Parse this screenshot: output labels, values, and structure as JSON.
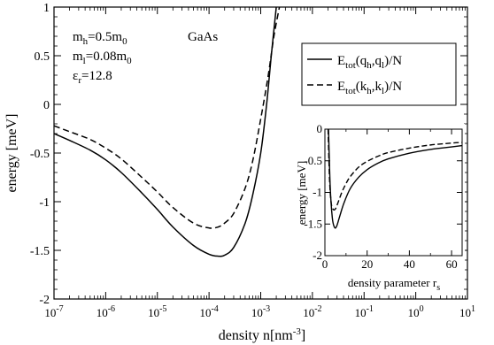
{
  "chart_data": [
    {
      "type": "line",
      "xlabel": "density n[nm",
      "xlabel_sup": "-3",
      "xlabel_end": "]",
      "ylabel": "energy [meV]",
      "x_scale": "log",
      "xlim": [
        1e-07,
        10
      ],
      "ylim": [
        -2,
        1
      ],
      "x_ticks": [
        {
          "base": "10",
          "exp": "-7"
        },
        {
          "base": "10",
          "exp": "-6"
        },
        {
          "base": "10",
          "exp": "-5"
        },
        {
          "base": "10",
          "exp": "-4"
        },
        {
          "base": "10",
          "exp": "-3"
        },
        {
          "base": "10",
          "exp": "-2"
        },
        {
          "base": "10",
          "exp": "-1"
        },
        {
          "base": "10",
          "exp": "0"
        },
        {
          "base": "10",
          "exp": "1"
        }
      ],
      "y_ticks": [
        "1",
        "0.5",
        "0",
        "-0.5",
        "-1",
        "-1.5",
        "-2"
      ],
      "parameters": {
        "mh": {
          "main": "m",
          "sub": "h",
          "rest": "=0.5m",
          "sub2": "0"
        },
        "ml": {
          "main": "m",
          "sub": "l",
          "rest": "=0.08m",
          "sub2": "0"
        },
        "er": {
          "main": "ε",
          "sub": "r",
          "rest": "=12.8"
        }
      },
      "material": "GaAs",
      "legend": {
        "placement": "top-right",
        "entries": [
          {
            "style": "solid",
            "prefix": "E",
            "sub": "tot",
            "args": "(q",
            "a1": "h",
            "mid": ",q",
            "a2": "l",
            "end": ")/N"
          },
          {
            "style": "dashed",
            "prefix": "E",
            "sub": "tot",
            "args": "(k",
            "a1": "h",
            "mid": ",k",
            "a2": "l",
            "end": ")/N"
          }
        ]
      },
      "series": [
        {
          "style": "solid",
          "x": [
            1e-07,
            2e-07,
            5e-07,
            1e-06,
            2e-06,
            5e-06,
            1e-05,
            2e-05,
            5e-05,
            0.0001,
            0.00015,
            0.0002,
            0.0003,
            0.0005,
            0.0007,
            0.001,
            0.0013,
            0.0016,
            0.002
          ],
          "y": [
            -0.3,
            -0.37,
            -0.47,
            -0.57,
            -0.7,
            -0.91,
            -1.08,
            -1.26,
            -1.45,
            -1.54,
            -1.56,
            -1.55,
            -1.47,
            -1.22,
            -0.93,
            -0.5,
            0.0,
            0.5,
            1.0
          ]
        },
        {
          "style": "dashed",
          "x": [
            1e-07,
            2e-07,
            5e-07,
            1e-06,
            2e-06,
            5e-06,
            1e-05,
            2e-05,
            5e-05,
            0.0001,
            0.00015,
            0.0002,
            0.0003,
            0.0005,
            0.0007,
            0.001,
            0.0014,
            0.0018,
            0.0023
          ],
          "y": [
            -0.22,
            -0.28,
            -0.36,
            -0.45,
            -0.56,
            -0.75,
            -0.9,
            -1.06,
            -1.22,
            -1.27,
            -1.26,
            -1.22,
            -1.12,
            -0.86,
            -0.58,
            -0.15,
            0.3,
            0.7,
            1.0
          ]
        }
      ]
    },
    {
      "type": "line",
      "inset": true,
      "xlabel": "density parameter r",
      "xlabel_sub": "s",
      "ylabel": "energy [meV]",
      "xlim": [
        0,
        65
      ],
      "ylim": [
        -2,
        0
      ],
      "x_ticks": [
        "0",
        "20",
        "40",
        "60"
      ],
      "y_ticks": [
        "0",
        "-0.5",
        "-1",
        "-1.5",
        "-2"
      ],
      "series": [
        {
          "style": "solid",
          "x": [
            1.7,
            2.5,
            3.5,
            4.5,
            5.5,
            7,
            9,
            12,
            16,
            20,
            25,
            30,
            40,
            50,
            60,
            65
          ],
          "y": [
            0,
            -0.9,
            -1.4,
            -1.55,
            -1.54,
            -1.38,
            -1.17,
            -0.94,
            -0.76,
            -0.64,
            -0.54,
            -0.47,
            -0.38,
            -0.32,
            -0.28,
            -0.26
          ]
        },
        {
          "style": "dashed",
          "x": [
            1.5,
            2.2,
            3,
            4,
            5,
            6,
            8,
            10,
            12,
            16,
            20,
            25,
            30,
            40,
            50,
            60,
            65
          ],
          "y": [
            0,
            -0.8,
            -1.17,
            -1.27,
            -1.26,
            -1.18,
            -1.0,
            -0.86,
            -0.75,
            -0.6,
            -0.51,
            -0.43,
            -0.37,
            -0.3,
            -0.25,
            -0.22,
            -0.21
          ]
        }
      ]
    }
  ]
}
